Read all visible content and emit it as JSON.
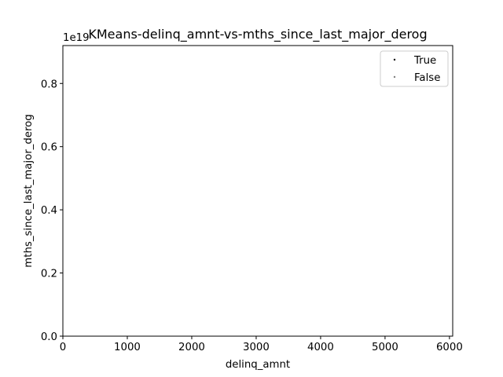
{
  "chart_data": {
    "type": "scatter",
    "title": "KMeans-delinq_amnt-vs-mths_since_last_major_derog",
    "xlabel": "delinq_amnt",
    "ylabel": "mths_since_last_major_derog",
    "y_offset_text": "1e19",
    "xlim": [
      0,
      6050
    ],
    "ylim": [
      0,
      0.92
    ],
    "x_ticks": [
      0,
      1000,
      2000,
      3000,
      4000,
      5000,
      6000
    ],
    "x_tick_labels": [
      "0",
      "1000",
      "2000",
      "3000",
      "4000",
      "5000",
      "6000"
    ],
    "y_ticks": [
      0.0,
      0.2,
      0.4,
      0.6,
      0.8
    ],
    "y_tick_labels": [
      "0.0",
      "0.2",
      "0.4",
      "0.6",
      "0.8"
    ],
    "grid": false,
    "legend_position": "top-right",
    "series": [
      {
        "name": "True",
        "color": "#000000",
        "points": []
      },
      {
        "name": "False",
        "color": "#808080",
        "points": []
      }
    ]
  }
}
